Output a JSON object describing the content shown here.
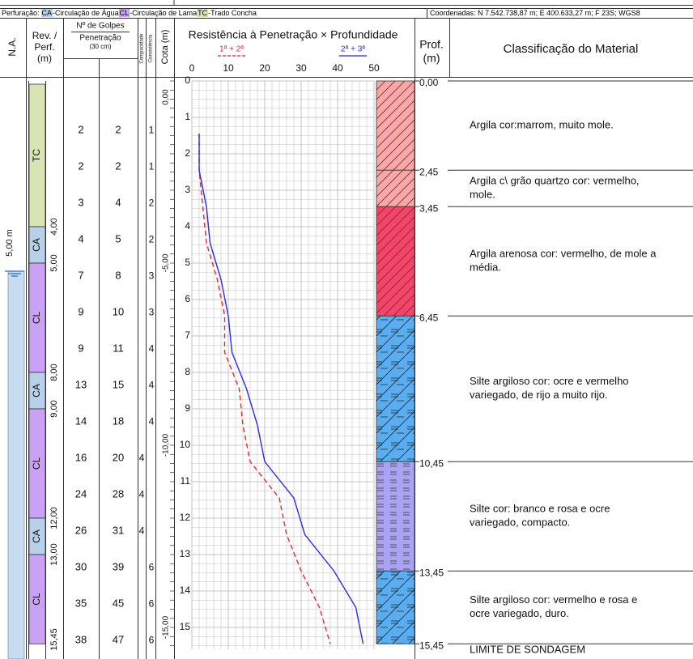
{
  "drilling_legend": {
    "label": "Perfuração:",
    "items": [
      {
        "code": "CA",
        "text": "-Circulação de Água",
        "color": "#b9d1e8"
      },
      {
        "code": "CL",
        "text": "-Circulação de Lama",
        "color": "#c9a2f5"
      },
      {
        "code": "TC",
        "text": "-Trado Concha",
        "color": "#d6e5b3"
      }
    ]
  },
  "coordinates": "Coordenadas: N 7.542.738,87 m; E 400.633,27 m; F 23S; WGS8",
  "headers": {
    "na": "N.A.",
    "rev": [
      "Rev. /",
      "Perf.",
      "(m)"
    ],
    "blows": [
      "Nº de Golpes",
      "Penetração",
      "(30 cm)"
    ],
    "compacidade": "Compacidade",
    "consistencia": "Consistência",
    "cota": "Cota (m)",
    "prof": [
      "Prof.",
      "(m)"
    ],
    "classification": "Classificação do Material"
  },
  "water_level": {
    "value": 5,
    "label": "5,00 m"
  },
  "rev_segments": [
    {
      "code": "TC",
      "bottom": {
        "value": 4,
        "label": "4,00"
      }
    },
    {
      "code": "CA",
      "bottom": {
        "value": 5,
        "label": "5,00"
      }
    },
    {
      "code": "CL",
      "bottom": {
        "value": 8,
        "label": "8,00"
      }
    },
    {
      "code": "CA",
      "bottom": {
        "value": 9,
        "label": "9,00"
      }
    },
    {
      "code": "CL",
      "bottom": {
        "value": 12,
        "label": "12,00"
      }
    },
    {
      "code": "CA",
      "bottom": {
        "value": 13,
        "label": "13,00"
      }
    },
    {
      "code": "CL",
      "bottom": {
        "value": 15.45,
        "label": "15,45"
      }
    }
  ],
  "compacidade": [
    null,
    null,
    null,
    null,
    null,
    null,
    null,
    null,
    null,
    4,
    4,
    4,
    null,
    null,
    null
  ],
  "consistencia": [
    1,
    1,
    2,
    2,
    3,
    3,
    4,
    4,
    4,
    null,
    null,
    null,
    6,
    6,
    6
  ],
  "cota": [
    {
      "value": 0,
      "label": "0,00"
    },
    {
      "value": -5,
      "label": "-5,00"
    },
    {
      "value": -10,
      "label": "-10,00"
    },
    {
      "value": -15,
      "label": "-15,00"
    }
  ],
  "chart_data": {
    "type": "line",
    "title": "Resistência à Penetração × Profundidade",
    "x": [
      1.45,
      2.45,
      3.45,
      4.45,
      5.45,
      6.45,
      7.45,
      8.45,
      9.45,
      10.45,
      11.45,
      12.45,
      13.45,
      14.45,
      15.45
    ],
    "xlim": [
      0,
      15.6
    ],
    "xticks": [
      0,
      1,
      2,
      3,
      4,
      5,
      6,
      7,
      8,
      9,
      10,
      11,
      12,
      13,
      14,
      15
    ],
    "ylim": [
      0,
      50
    ],
    "yticks": [
      0,
      10,
      20,
      30,
      40,
      50
    ],
    "grid": true,
    "series": [
      {
        "name": "1ª + 2ª",
        "color": "#e8262b",
        "dashed": true,
        "values": [
          2,
          2,
          3,
          4,
          7,
          9,
          9,
          13,
          14,
          16,
          24,
          26,
          30,
          35,
          38
        ]
      },
      {
        "name": "2ª + 3ª",
        "color": "#2a2ae8",
        "dashed": false,
        "values": [
          2,
          2,
          4,
          5,
          8,
          10,
          11,
          15,
          18,
          20,
          28,
          31,
          39,
          45,
          47
        ]
      }
    ]
  },
  "boundaries": [
    {
      "value": 0,
      "label": "0,00"
    },
    {
      "value": 2.45,
      "label": "2,45"
    },
    {
      "value": 3.45,
      "label": "3,45"
    },
    {
      "value": 6.45,
      "label": "6,45"
    },
    {
      "value": 10.45,
      "label": "10,45"
    },
    {
      "value": 13.45,
      "label": "13,45"
    },
    {
      "value": 15.45,
      "label": "15,45"
    }
  ],
  "layers": [
    {
      "color": "#f7a8a8",
      "pattern": "clay",
      "description": [
        "Argila cor:marrom, muito mole."
      ]
    },
    {
      "color": "#f7a8a8",
      "pattern": "clay",
      "description": [
        "Argila c\\ grão quartzo cor: vermelho,",
        "mole."
      ]
    },
    {
      "color": "#f0466a",
      "pattern": "clay",
      "description": [
        "Argila arenosa cor: vermelho, de mole a",
        "média."
      ]
    },
    {
      "color": "#5aaef0",
      "pattern": "siltclay",
      "description": [
        "Silte argiloso cor: ocre e vermelho",
        "variegado, de rijo a muito rijo."
      ]
    },
    {
      "color": "#a9a3f2",
      "pattern": "silt",
      "description": [
        "Silte cor: branco e rosa e ocre",
        "variegado, compacto."
      ]
    },
    {
      "color": "#5aaef0",
      "pattern": "siltclay",
      "description": [
        "Silte argiloso cor: vermelho e rosa e",
        "ocre variegado, duro."
      ]
    }
  ],
  "end_label": "LIMITE DE SONDAGEM"
}
